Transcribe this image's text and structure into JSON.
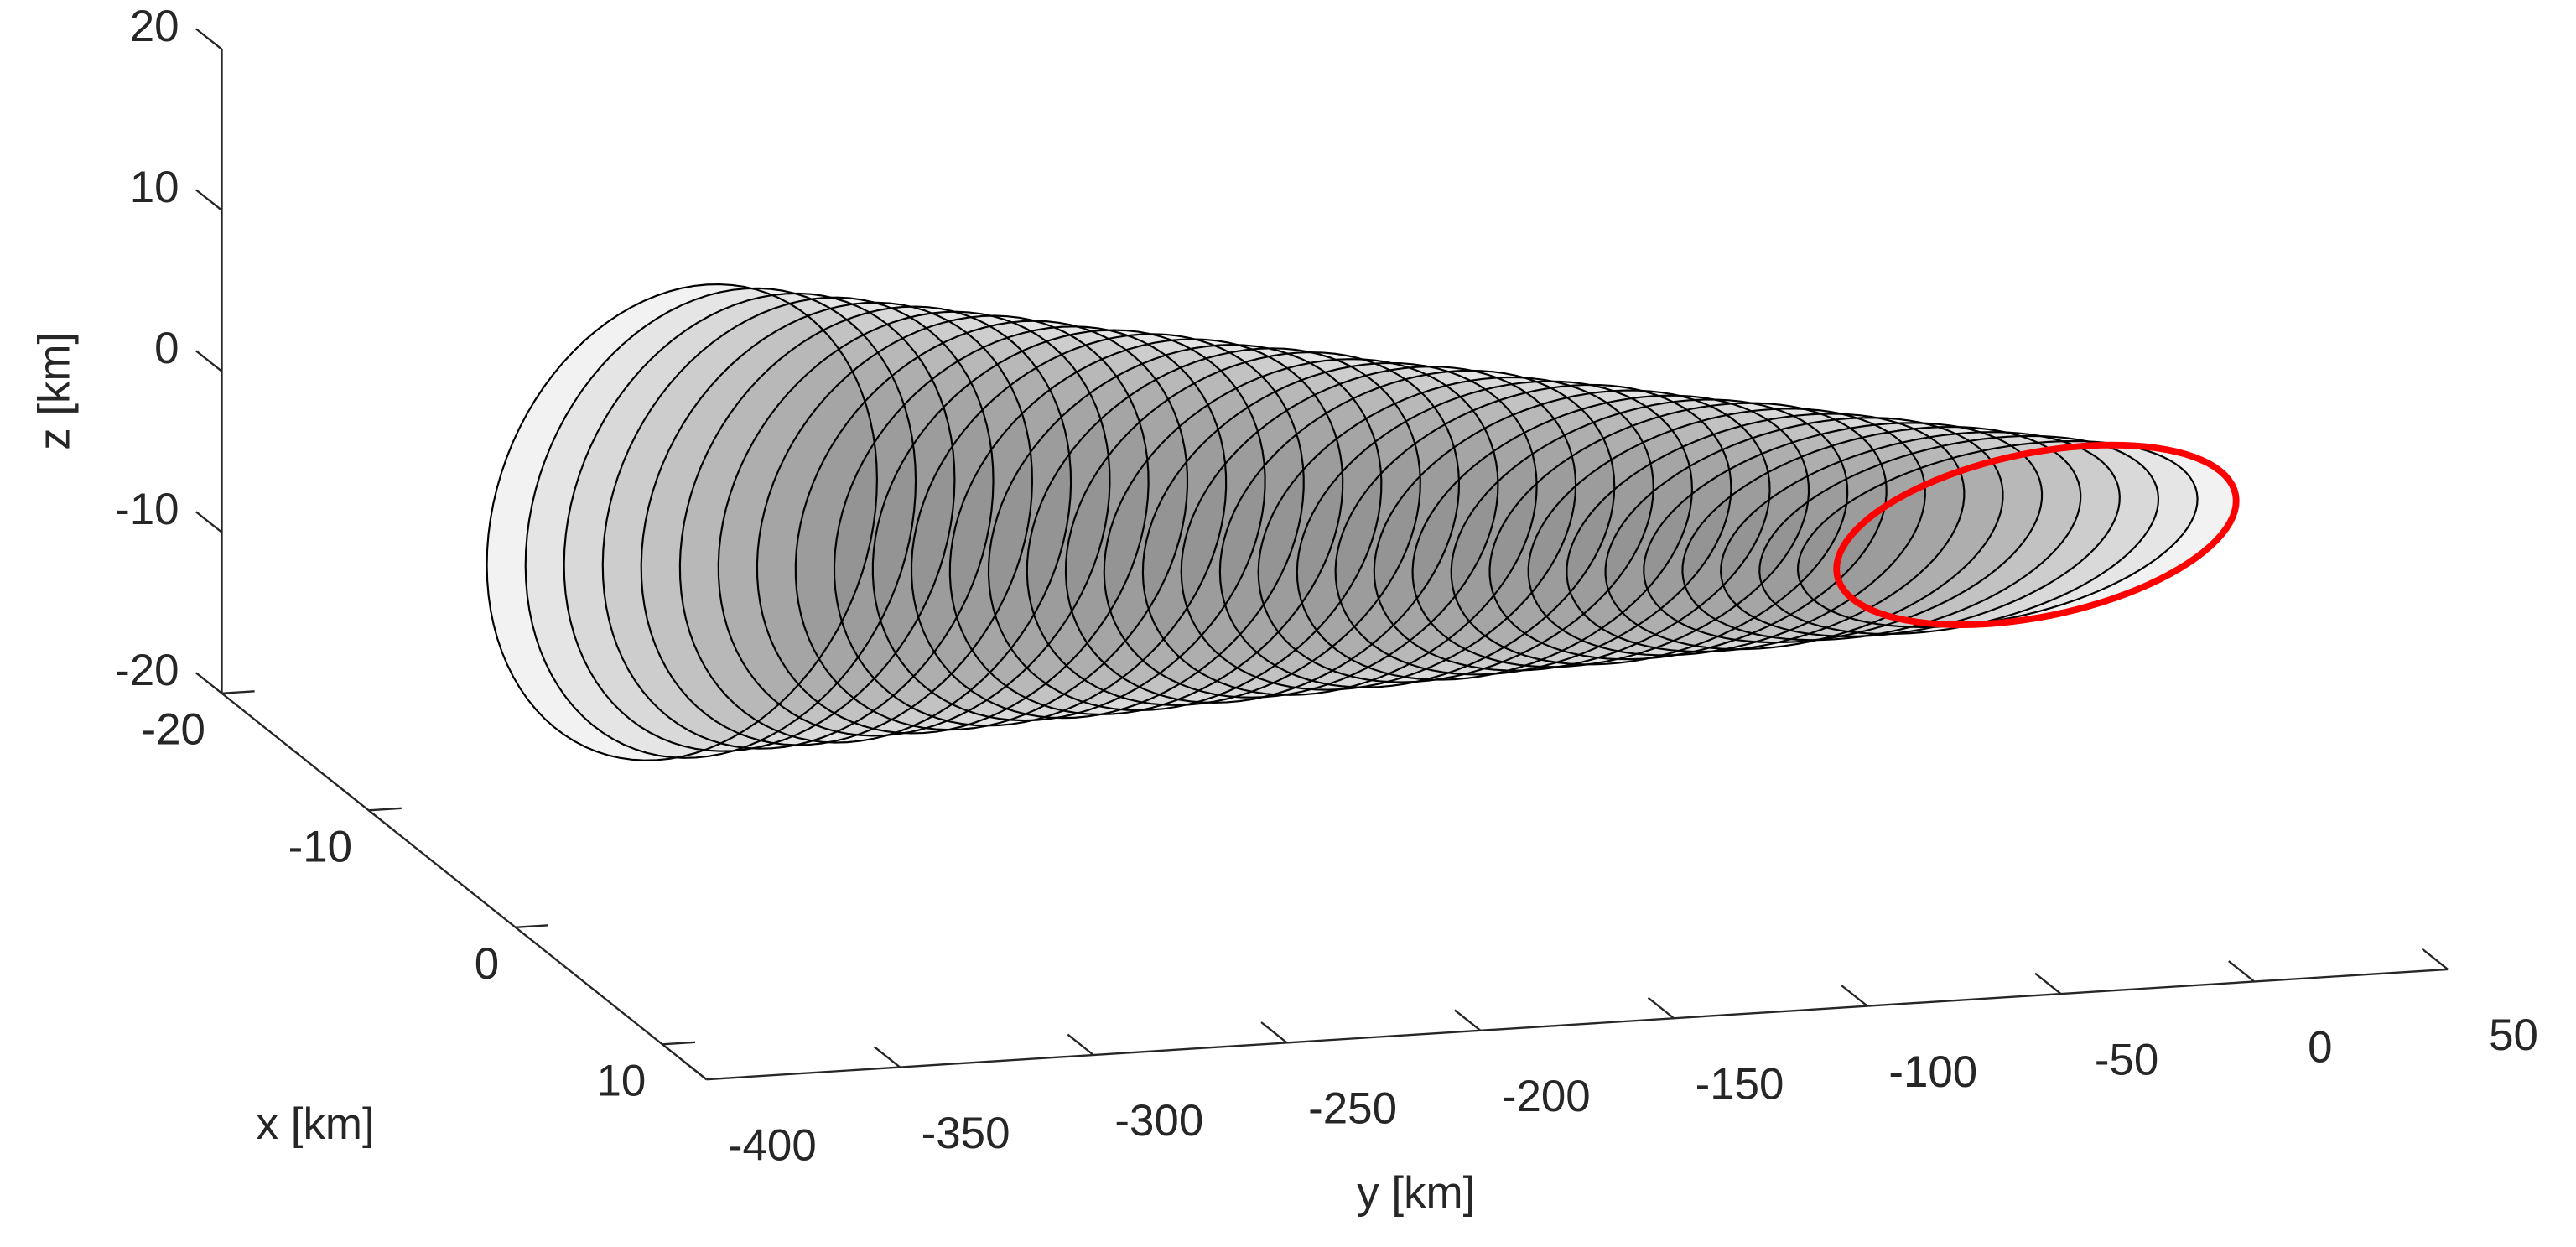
{
  "chart_data": {
    "type": "tube3d",
    "xlabel": "x [km]",
    "ylabel": "y [km]",
    "zlabel": "z [km]",
    "xlim": [
      -20,
      13
    ],
    "ylim": [
      -400,
      50
    ],
    "zlim": [
      -20,
      20
    ],
    "xticks": [
      -20,
      -10,
      0,
      10
    ],
    "yticks": [
      -400,
      -350,
      -300,
      -250,
      -200,
      -150,
      -100,
      -50,
      0,
      50
    ],
    "zticks": [
      -20,
      -10,
      0,
      10,
      20
    ],
    "series": [
      {
        "color": "#000000",
        "x_center": 0,
        "y_amplitude": 50,
        "y_center": [
          -357,
          -347,
          -337,
          -327,
          -317,
          -307,
          -297,
          -287,
          -277,
          -267,
          -257,
          -247,
          -237,
          -227,
          -217,
          -207,
          -197,
          -187,
          -177,
          -167,
          -157,
          -147,
          -137,
          -127,
          -117,
          -107,
          -97,
          -87,
          -77,
          -67,
          -57,
          -47,
          -37,
          -27,
          -17,
          -7
        ],
        "z_center": [
          4.5,
          4.3,
          4.2,
          4.0,
          3.8,
          3.6,
          3.5,
          3.3,
          3.1,
          2.9,
          2.8,
          2.6,
          2.4,
          2.2,
          2.1,
          1.9,
          1.7,
          1.5,
          1.4,
          1.2,
          1.0,
          0.8,
          0.7,
          0.5,
          0.3,
          0.1,
          0.0,
          -0.2,
          -0.4,
          -0.6,
          -0.7,
          -0.9,
          -1.1,
          -1.3,
          -1.4,
          -1.6
        ],
        "x_amplitude": [
          1.7,
          1.7,
          1.8,
          1.8,
          1.9,
          1.9,
          2.0,
          2.0,
          2.1,
          2.1,
          2.2,
          2.2,
          2.3,
          2.3,
          2.4,
          2.4,
          2.5,
          2.5,
          2.6,
          2.6,
          2.7,
          2.7,
          2.8,
          2.8,
          2.9,
          2.9,
          3.0,
          3.0,
          3.1,
          3.1,
          3.2,
          3.2,
          3.3,
          3.3,
          3.4,
          3.4
        ],
        "z_amplitude": [
          16.0,
          15.8,
          15.5,
          15.3,
          15.1,
          14.9,
          14.6,
          14.4,
          14.2,
          13.9,
          13.7,
          13.5,
          13.3,
          13.0,
          12.8,
          12.6,
          12.3,
          12.1,
          11.9,
          11.7,
          11.4,
          11.2,
          11.0,
          10.7,
          10.5,
          10.3,
          10.1,
          9.8,
          9.6,
          9.4,
          9.1,
          8.9,
          8.7,
          8.5,
          8.2,
          8.0
        ]
      },
      {
        "color": "#ff0000",
        "x_center": 0,
        "y_amplitude": 50,
        "y_center": [
          -7
        ],
        "z_center": [
          -1.6
        ],
        "x_amplitude": [
          3.4
        ],
        "z_amplitude": [
          8.0
        ]
      }
    ]
  }
}
